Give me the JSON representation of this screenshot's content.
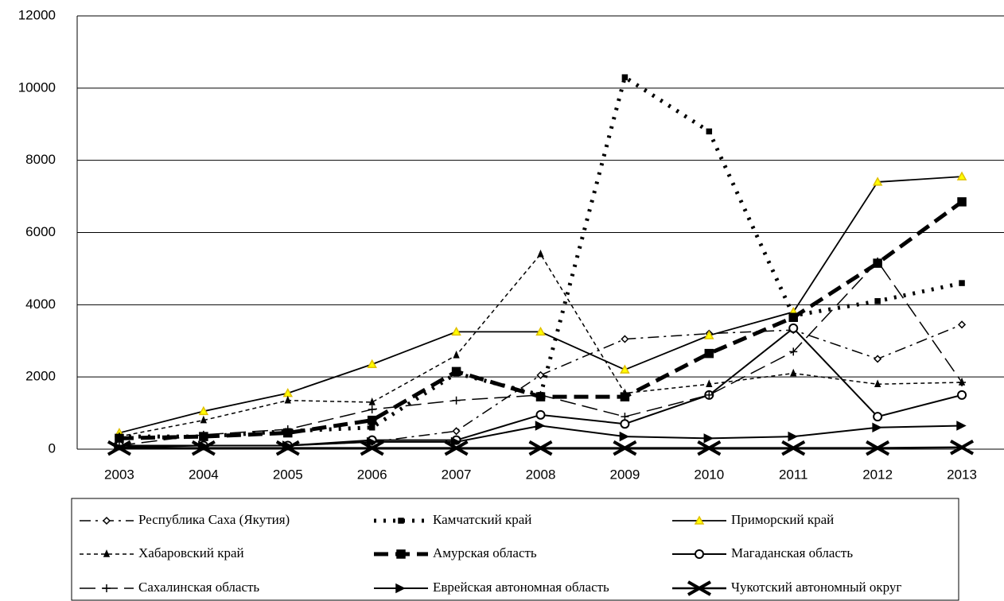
{
  "chart_data": {
    "type": "line",
    "categories": [
      "2003",
      "2004",
      "2005",
      "2006",
      "2007",
      "2008",
      "2009",
      "2010",
      "2011",
      "2012",
      "2013"
    ],
    "ylim": [
      0,
      12000
    ],
    "yticks": [
      0,
      2000,
      4000,
      6000,
      8000,
      10000,
      12000
    ],
    "grid": true,
    "legend": "bottom",
    "series": [
      {
        "name": "Республика Саха (Якутия)",
        "color": "#000000",
        "values": [
          100,
          100,
          100,
          200,
          500,
          2050,
          3050,
          3200,
          3300,
          2500,
          3450
        ]
      },
      {
        "name": "Камчатский край",
        "color": "#000000",
        "values": [
          350,
          350,
          500,
          600,
          2100,
          1500,
          10300,
          8800,
          3700,
          4100,
          4600
        ]
      },
      {
        "name": "Приморский край",
        "color": "#000000",
        "values": [
          450,
          1050,
          1550,
          2350,
          3250,
          3250,
          2200,
          3150,
          3800,
          7400,
          7550
        ]
      },
      {
        "name": "Хабаровский край",
        "color": "#000000",
        "values": [
          350,
          800,
          1350,
          1300,
          2600,
          5400,
          1550,
          1800,
          2100,
          1800,
          1850
        ]
      },
      {
        "name": "Амурская область",
        "color": "#000000",
        "values": [
          300,
          350,
          450,
          800,
          2150,
          1450,
          1450,
          2650,
          3650,
          5150,
          6850
        ]
      },
      {
        "name": "Магаданская область",
        "color": "#000000",
        "values": [
          100,
          100,
          100,
          250,
          250,
          950,
          700,
          1500,
          3350,
          900,
          1500
        ]
      },
      {
        "name": "Сахалинская область",
        "color": "#000000",
        "values": [
          100,
          400,
          550,
          1100,
          1350,
          1500,
          900,
          1500,
          2700,
          5200,
          1850
        ]
      },
      {
        "name": "Еврейская автономная область",
        "color": "#000000",
        "values": [
          50,
          100,
          100,
          200,
          200,
          650,
          350,
          300,
          350,
          600,
          650
        ]
      },
      {
        "name": "Чукотский автономный округ",
        "color": "#000000",
        "values": [
          30,
          30,
          30,
          30,
          30,
          30,
          30,
          30,
          30,
          30,
          50
        ]
      }
    ]
  }
}
